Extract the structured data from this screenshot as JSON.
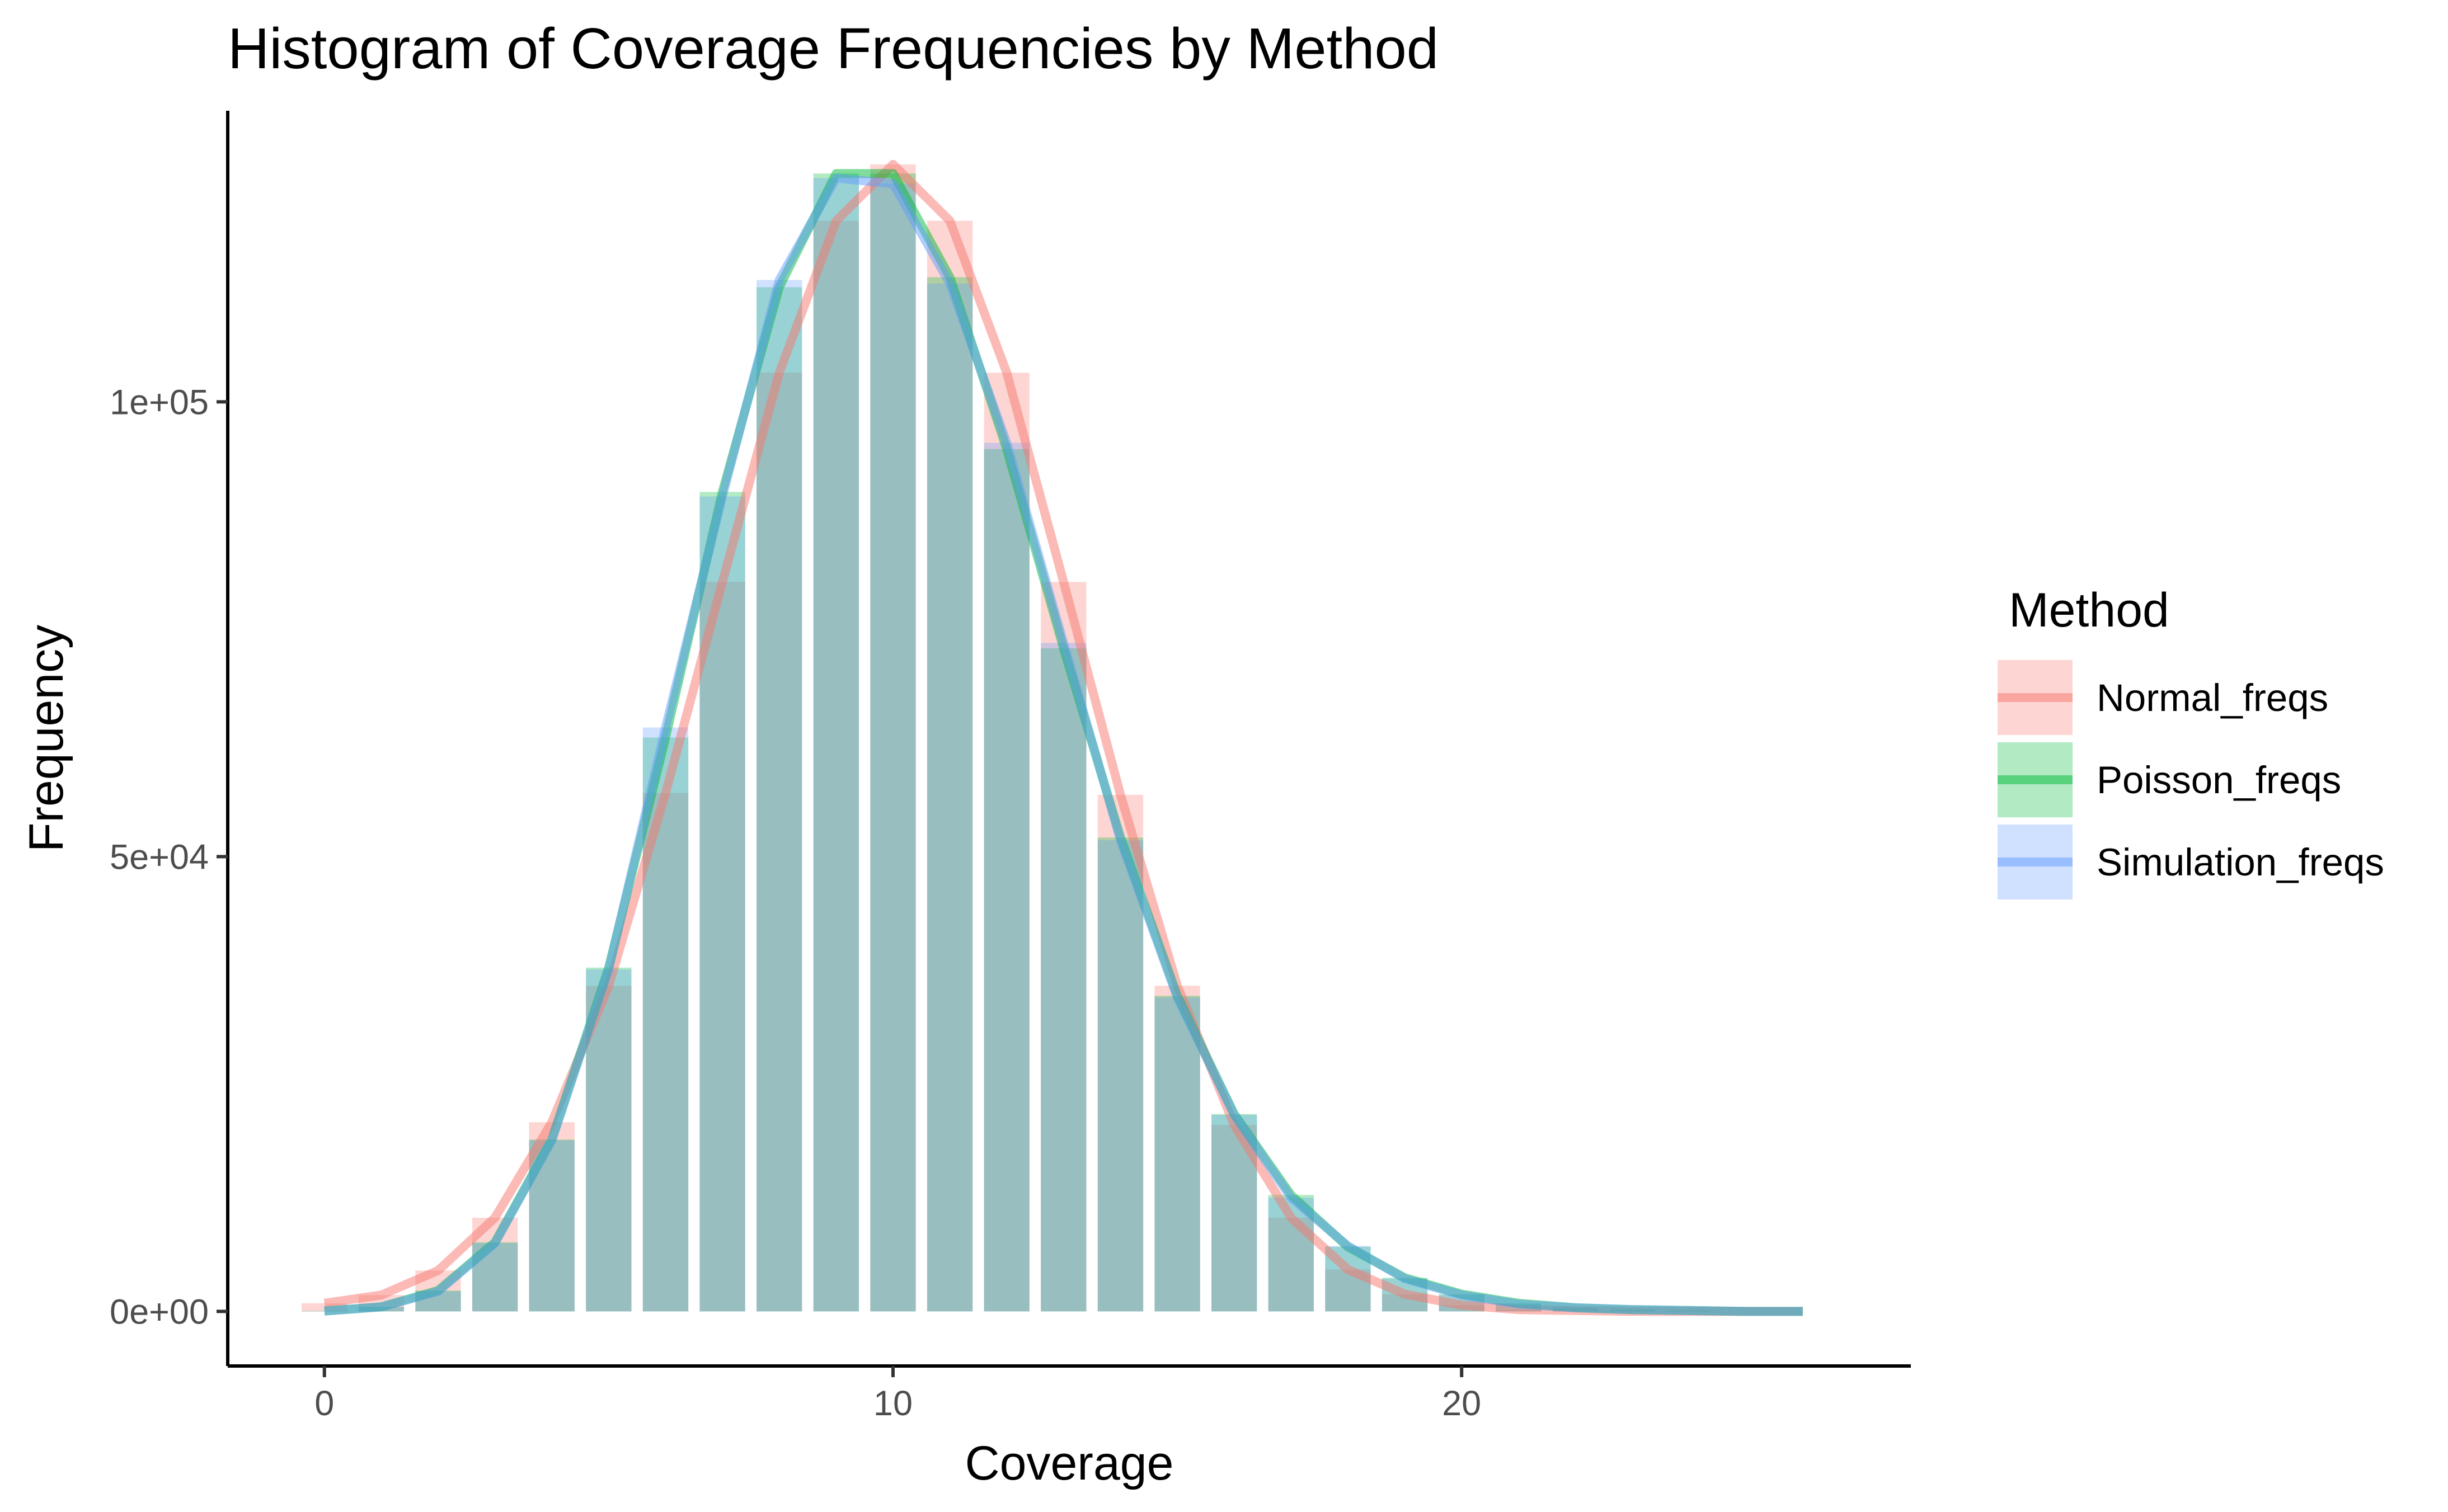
{
  "chart_data": {
    "type": "bar",
    "title": "Histogram of Coverage Frequencies by Method",
    "xlabel": "Coverage",
    "ylabel": "Frequency",
    "xlim": [
      -1.7,
      27.9
    ],
    "ylim": [
      -6000,
      132000
    ],
    "x_ticks": [
      0,
      10,
      20
    ],
    "x_tick_labels": [
      "0",
      "10",
      "20"
    ],
    "y_ticks": [
      0,
      50000,
      100000
    ],
    "y_tick_labels": [
      "0e+00",
      "5e+04",
      "1e+05"
    ],
    "legend_title": "Method",
    "legend_position": "right",
    "grid": false,
    "x": [
      0,
      1,
      2,
      3,
      4,
      5,
      6,
      7,
      8,
      9,
      10,
      11,
      12,
      13,
      14,
      15,
      16,
      17,
      18,
      19,
      20,
      21,
      22,
      23,
      24,
      25,
      26
    ],
    "series": [
      {
        "name": "Normal_freqs",
        "color": "#F8766D",
        "values": [
          900,
          1800,
          4500,
          10300,
          20800,
          35800,
          57000,
          80200,
          103200,
          119900,
          126100,
          119900,
          103200,
          80200,
          56800,
          35800,
          20500,
          10300,
          4600,
          1900,
          700,
          200,
          100,
          0,
          0,
          0,
          0
        ]
      },
      {
        "name": "Poisson_freqs",
        "color": "#00BA38",
        "values": [
          50,
          500,
          2300,
          7600,
          18900,
          37800,
          63100,
          90100,
          112600,
          125100,
          125100,
          113700,
          94800,
          72900,
          52100,
          34700,
          21700,
          12800,
          7100,
          3700,
          1900,
          900,
          400,
          200,
          100,
          0,
          0
        ]
      },
      {
        "name": "Simulation_freqs",
        "color": "#619CFF",
        "values": [
          40,
          500,
          2200,
          7500,
          18800,
          37600,
          64200,
          89600,
          113400,
          124600,
          124000,
          113000,
          95500,
          73500,
          51800,
          34500,
          21600,
          12500,
          7200,
          3600,
          1800,
          800,
          400,
          200,
          100,
          0,
          0
        ]
      }
    ]
  }
}
